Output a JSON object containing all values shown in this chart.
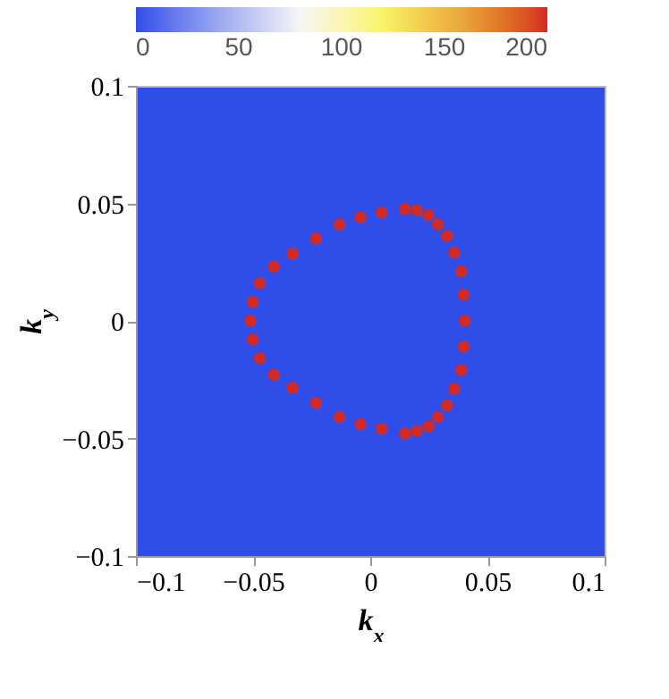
{
  "chart_data": {
    "type": "scatter",
    "xlabel": "k$_{x}$",
    "ylabel": "k$_{y}$",
    "xlim": [
      -0.1,
      0.1
    ],
    "ylim": [
      -0.1,
      0.1
    ],
    "xticks": [
      -0.1,
      -0.05,
      0,
      0.05,
      0.1
    ],
    "yticks": [
      -0.1,
      -0.05,
      0,
      0.05,
      0.1
    ],
    "clim": [
      0,
      200
    ],
    "cticks": [
      0,
      50,
      100,
      150,
      200
    ],
    "series": [
      {
        "x": [
          -0.051,
          -0.05,
          -0.047,
          -0.041,
          -0.033,
          -0.023,
          -0.013,
          -0.004,
          0.005,
          0.015,
          0.02,
          0.025,
          0.029,
          0.033,
          0.036,
          0.039,
          0.04,
          0.0405,
          0.04,
          0.039,
          0.036,
          0.033,
          0.029,
          0.025,
          0.02,
          0.015,
          0.005,
          -0.004,
          -0.013,
          -0.023,
          -0.033,
          -0.041,
          -0.047,
          -0.05
        ],
        "values": [
          0,
          0.008,
          0.016,
          0.023,
          0.0285,
          0.035,
          0.041,
          0.044,
          0.046,
          0.0475,
          0.047,
          0.045,
          0.041,
          0.036,
          0.029,
          0.021,
          0.011,
          0,
          -0.011,
          -0.021,
          -0.029,
          -0.036,
          -0.041,
          -0.045,
          -0.047,
          -0.048,
          -0.046,
          -0.044,
          -0.041,
          -0.035,
          -0.0285,
          -0.023,
          -0.016,
          -0.008
        ],
        "cvalues": [
          200,
          200,
          200,
          200,
          200,
          200,
          200,
          200,
          200,
          200,
          200,
          200,
          200,
          200,
          200,
          200,
          200,
          200,
          200,
          200,
          200,
          200,
          200,
          200,
          200,
          200,
          200,
          200,
          200,
          200,
          200,
          200,
          200,
          200
        ]
      }
    ]
  }
}
